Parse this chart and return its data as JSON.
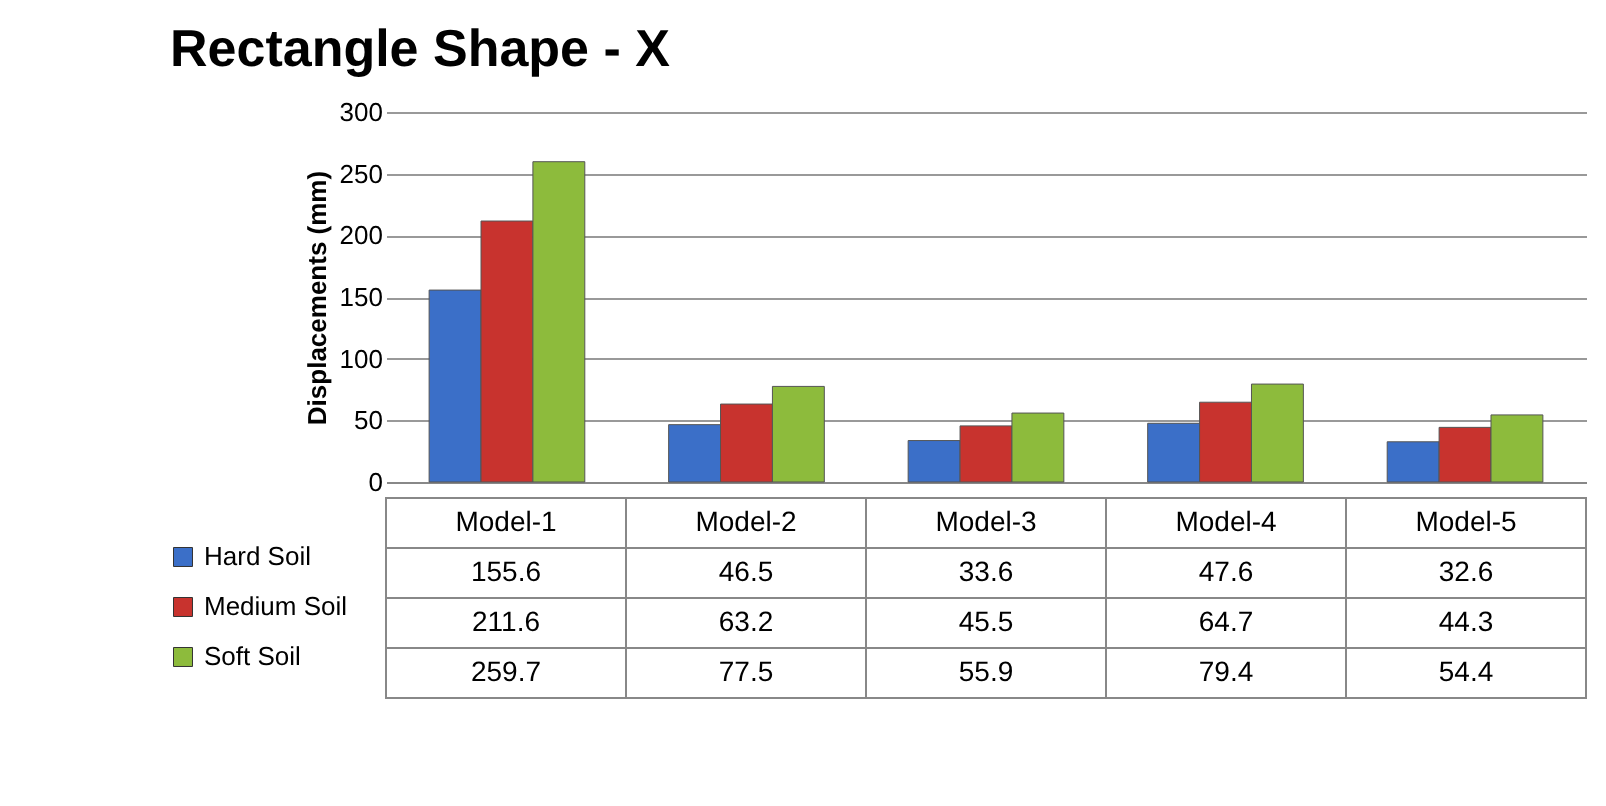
{
  "chart_data": {
    "type": "bar",
    "title": "Rectangle Shape - X",
    "ylabel": "Displacements (mm)",
    "categories": [
      "Model-1",
      "Model-2",
      "Model-3",
      "Model-4",
      "Model-5"
    ],
    "series": [
      {
        "name": "Hard Soil",
        "color": "#3b6fc8",
        "values": [
          155.6,
          46.5,
          33.6,
          47.6,
          32.6
        ]
      },
      {
        "name": "Medium Soil",
        "color": "#c8332e",
        "values": [
          211.6,
          63.2,
          45.5,
          64.7,
          44.3
        ]
      },
      {
        "name": "Soft Soil",
        "color": "#8dbb3c",
        "values": [
          259.7,
          77.5,
          55.9,
          79.4,
          54.4
        ]
      }
    ],
    "ylim": [
      0,
      300
    ],
    "yticks": [
      0,
      50,
      100,
      150,
      200,
      250,
      300
    ],
    "grid": "y",
    "legend": "bottom left",
    "data_labels": true
  }
}
